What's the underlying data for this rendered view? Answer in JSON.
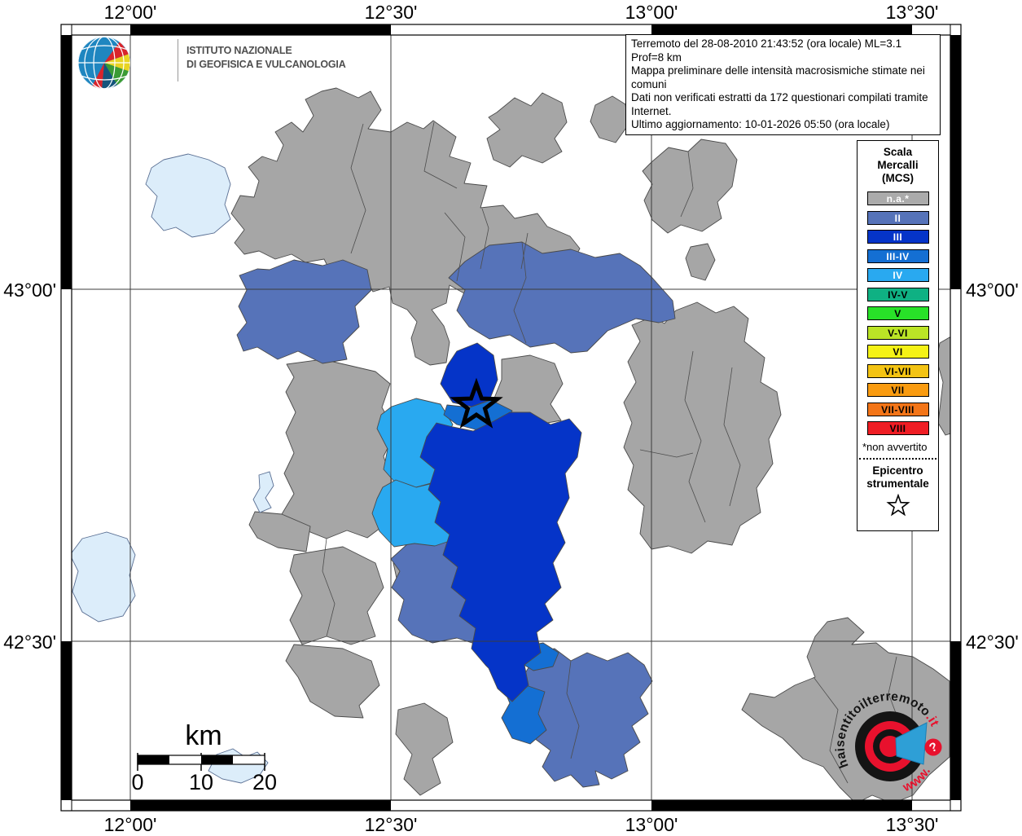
{
  "branding": {
    "institute_line1": "ISTITUTO NAZIONALE",
    "institute_line2": "DI GEOFISICA E VULCANOLOGIA"
  },
  "info_box": {
    "line1": "Terremoto del 28-08-2010 21:43:52 (ora locale) ML=3.1 Prof=8 km",
    "line2": "Mappa preliminare delle intensità macrosismiche stimate nei comuni",
    "line3": "Dati non verificati estratti da 172 questionari compilati tramite Internet.",
    "line4": "Ultimo aggiornamento: 10-01-2026 05:50 (ora locale)"
  },
  "legend": {
    "title_lines": [
      "Scala",
      "Mercalli",
      "(MCS)"
    ],
    "items": [
      {
        "label": "n.a.*",
        "color": "#ABABAB",
        "text_color": "#ffffff"
      },
      {
        "label": "II",
        "color": "#5673B9",
        "text_color": "#ffffff"
      },
      {
        "label": "III",
        "color": "#0534C8",
        "text_color": "#ffffff"
      },
      {
        "label": "III-IV",
        "color": "#146FD3",
        "text_color": "#ffffff"
      },
      {
        "label": "IV",
        "color": "#29A9F0",
        "text_color": "#ffffff"
      },
      {
        "label": "IV-V",
        "color": "#0FB183",
        "text_color": "#000000"
      },
      {
        "label": "V",
        "color": "#28E228",
        "text_color": "#000000"
      },
      {
        "label": "V-VI",
        "color": "#BBE426",
        "text_color": "#000000"
      },
      {
        "label": "VI",
        "color": "#F5F216",
        "text_color": "#000000"
      },
      {
        "label": "VI-VII",
        "color": "#F3C313",
        "text_color": "#000000"
      },
      {
        "label": "VII",
        "color": "#F99B10",
        "text_color": "#000000"
      },
      {
        "label": "VII-VIII",
        "color": "#F37518",
        "text_color": "#000000"
      },
      {
        "label": "VIII",
        "color": "#EF1D24",
        "text_color": "#000000"
      }
    ],
    "footnote": "*non avvertito",
    "epicenter_lines": [
      "Epicentro",
      "strumentale"
    ]
  },
  "axes": {
    "top": [
      "12°00'",
      "12°30'",
      "13°00'",
      "13°30'"
    ],
    "bottom": [
      "12°00'",
      "12°30'",
      "13°00'",
      "13°30'"
    ],
    "left": [
      "43°00'",
      "42°30'"
    ],
    "right": [
      "43°00'",
      "42°30'"
    ]
  },
  "scale_bar": {
    "unit_label": "km",
    "tick_labels": [
      "0",
      "10",
      "20"
    ]
  },
  "watermark": {
    "arc_text_black": "haisentitoilterremoto",
    "arc_text_red": ".it",
    "prefix": "www.",
    "badge": "?"
  },
  "map": {
    "intensity_levels_shown": [
      "n.a.*",
      "II",
      "III",
      "III-IV",
      "IV"
    ],
    "region_gray": "#A6A6A6",
    "lake_color": "#DCEDFA",
    "epicenter_marker": "star"
  }
}
